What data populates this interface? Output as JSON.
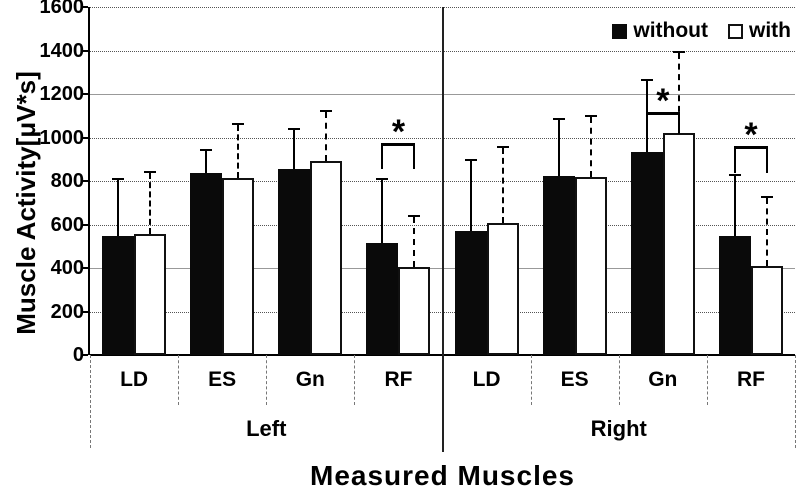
{
  "chart_data": {
    "type": "bar",
    "title": "",
    "ylabel": "Muscle Activity[μV*s]",
    "xlabel": "Measured Muscles",
    "ylim": [
      0,
      1600
    ],
    "ytick_step": 200,
    "grid": true,
    "legend_position": "top-right",
    "sides": [
      "Left",
      "Right"
    ],
    "muscles": [
      "LD",
      "ES",
      "Gn",
      "RF"
    ],
    "categories": [
      "Left LD",
      "Left ES",
      "Left Gn",
      "Left RF",
      "Right LD",
      "Right ES",
      "Right Gn",
      "Right RF"
    ],
    "series": [
      {
        "name": "without",
        "fill": "#0a0a0a",
        "values": [
          545,
          835,
          855,
          515,
          570,
          825,
          935,
          545
        ],
        "err_top": [
          815,
          945,
          1045,
          815,
          900,
          1090,
          1270,
          830
        ]
      },
      {
        "name": "with",
        "fill": "#ffffff",
        "values": [
          555,
          815,
          890,
          405,
          605,
          820,
          1020,
          410
        ],
        "err_top": [
          845,
          1065,
          1125,
          645,
          960,
          1105,
          1400,
          730
        ]
      }
    ],
    "significance": [
      {
        "category_index": 3,
        "symbol": "*",
        "bracket_value": 975,
        "leg_drop": 120
      },
      {
        "category_index": 6,
        "symbol": "*",
        "bracket_value": 1115,
        "leg_drop": 100
      },
      {
        "category_index": 7,
        "symbol": "*",
        "bracket_value": 960,
        "leg_drop": 125
      }
    ]
  },
  "colors": {
    "bar_without": "#0a0a0a",
    "bar_with": "#ffffff",
    "axis": "#000000",
    "gridline": "#555555"
  }
}
